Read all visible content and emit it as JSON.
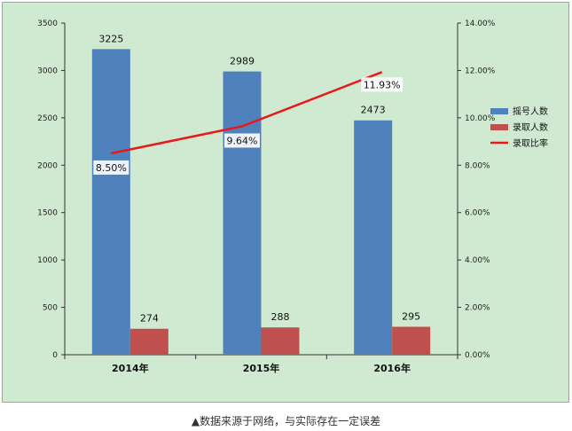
{
  "caption": "▲数据来源于网络，与实际存在一定误差",
  "chart_data": {
    "type": "bar",
    "categories": [
      "2014年",
      "2015年",
      "2016年"
    ],
    "series": [
      {
        "name": "摇号人数",
        "kind": "bar",
        "axis": "left",
        "color": "#4f81bd",
        "values": [
          3225,
          2989,
          2473
        ],
        "labels": [
          "3225",
          "2989",
          "2473"
        ]
      },
      {
        "name": "录取人数",
        "kind": "bar",
        "axis": "left",
        "color": "#c0504d",
        "values": [
          274,
          288,
          295
        ],
        "labels": [
          "274",
          "288",
          "295"
        ]
      },
      {
        "name": "录取比率",
        "kind": "line",
        "axis": "right",
        "color": "#e8181b",
        "values": [
          8.5,
          9.64,
          11.93
        ],
        "labels": [
          "8.50%",
          "9.64%",
          "11.93%"
        ]
      }
    ],
    "ylim": [
      0,
      3500
    ],
    "yticks": [
      "0",
      "500",
      "1000",
      "1500",
      "2000",
      "2500",
      "3000",
      "3500"
    ],
    "y2lim": [
      0,
      14
    ],
    "y2ticks": [
      "0.00%",
      "2.00%",
      "4.00%",
      "6.00%",
      "8.00%",
      "10.00%",
      "12.00%",
      "14.00%"
    ],
    "legend_position": "right",
    "grid": false,
    "background": "#d0ead1"
  }
}
